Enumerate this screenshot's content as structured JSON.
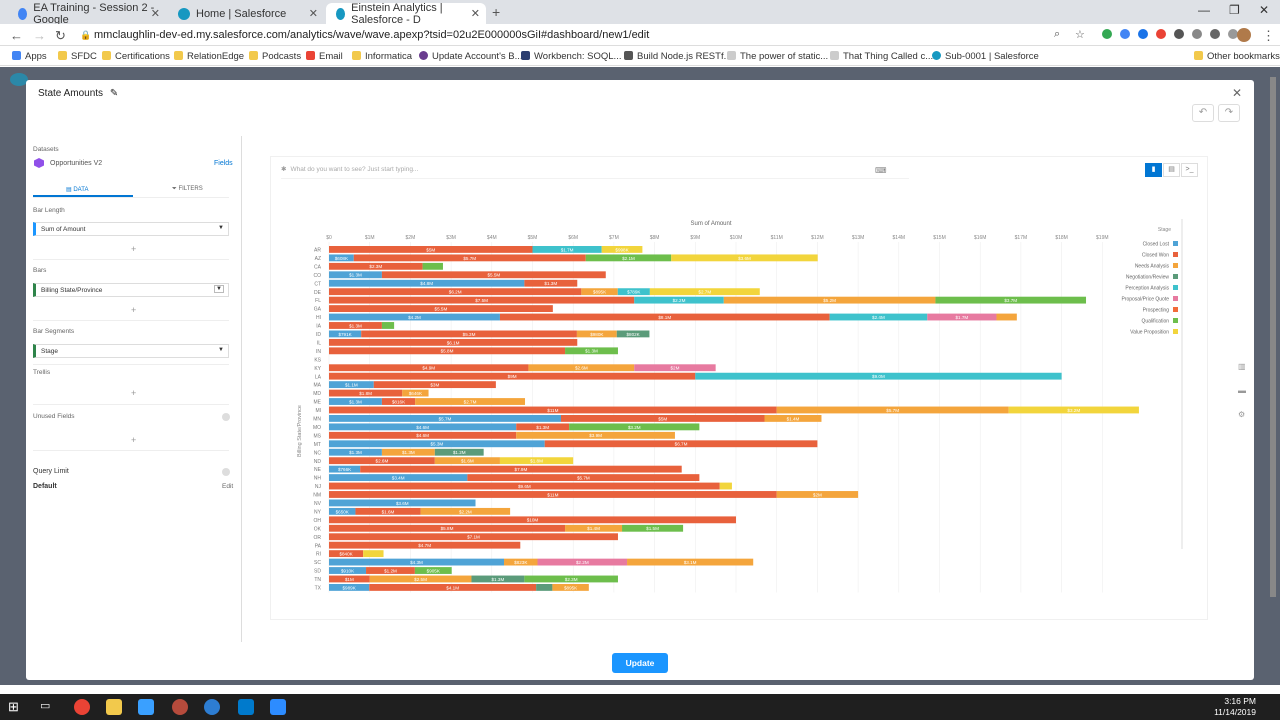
{
  "browser": {
    "tabs": [
      {
        "title": "EA Training - Session 2 - Google"
      },
      {
        "title": "Home | Salesforce"
      },
      {
        "title": "Einstein Analytics | Salesforce - D"
      }
    ],
    "url": "mmclaughlin-dev-ed.my.salesforce.com/analytics/wave/wave.apexp?tsid=02u2E000000sGiI#dashboard/new1/edit",
    "bookmarks": [
      "Apps",
      "SFDC",
      "Certifications",
      "RelationEdge",
      "Podcasts",
      "Email",
      "Informatica",
      "Update Account's B...",
      "Workbench: SOQL...",
      "Build Node.js RESTf...",
      "The power of static...",
      "That Thing Called c...",
      "Sub-0001 | Salesforce"
    ],
    "other_bookmarks": "Other bookmarks"
  },
  "modal": {
    "title": "State Amounts",
    "update_label": "Update"
  },
  "panel": {
    "datasets_label": "Datasets",
    "dataset_name": "Opportunities V2",
    "fields_link": "Fields",
    "tab_data": "DATA",
    "tab_filters": "FILTERS",
    "bar_length_label": "Bar Length",
    "bar_length_value": "Sum of Amount",
    "bars_label": "Bars",
    "bars_value": "Billing State/Province",
    "bar_segments_label": "Bar Segments",
    "bar_segments_value": "Stage",
    "trellis_label": "Trellis",
    "unused_fields_label": "Unused Fields",
    "query_limit_label": "Query Limit",
    "query_limit_value": "Default",
    "edit_link": "Edit"
  },
  "explorer": {
    "search_placeholder": "What do you want to see? Just start typing..."
  },
  "chart_data": {
    "type": "bar",
    "orientation": "horizontal",
    "stacked": true,
    "title": "Sum of Amount",
    "ylabel": "Billing State/Province",
    "xlim": [
      0,
      19000000
    ],
    "x_ticks": [
      "$0",
      "$1M",
      "$2M",
      "$3M",
      "$4M",
      "$5M",
      "$6M",
      "$7M",
      "$8M",
      "$9M",
      "$10M",
      "$11M",
      "$12M",
      "$13M",
      "$14M",
      "$15M",
      "$16M",
      "$17M",
      "$18M",
      "$19M"
    ],
    "legend_title": "Stage",
    "legend_position": "right",
    "series": [
      {
        "name": "Closed Lost",
        "color": "#4fa3d6"
      },
      {
        "name": "Closed Won",
        "color": "#e8613c"
      },
      {
        "name": "Needs Analysis",
        "color": "#f4a53c"
      },
      {
        "name": "Negotiation/Review",
        "color": "#5b9b7a"
      },
      {
        "name": "Perception Analysis",
        "color": "#3ec2cc"
      },
      {
        "name": "Proposal/Price Quote",
        "color": "#e77aa0"
      },
      {
        "name": "Prospecting",
        "color": "#f26b3a"
      },
      {
        "name": "Qualification",
        "color": "#6dbe4c"
      },
      {
        "name": "Value Proposition",
        "color": "#f2d53c"
      }
    ],
    "rows": [
      {
        "state": "AR",
        "segments": [
          [
            "Closed Won",
            5,
            "$5M"
          ],
          [
            "Perception Analysis",
            1.7,
            "$1.7M"
          ],
          [
            "Value Proposition",
            1,
            "$998K"
          ]
        ]
      },
      {
        "state": "AZ",
        "segments": [
          [
            "Closed Lost",
            0.608,
            "$608K"
          ],
          [
            "Closed Won",
            5.7,
            "$5.7M"
          ],
          [
            "Qualification",
            2.1,
            "$2.1M"
          ],
          [
            "Value Proposition",
            3.6,
            "$3.6M"
          ]
        ]
      },
      {
        "state": "CA",
        "segments": [
          [
            "Closed Won",
            2.3,
            "$2.3M"
          ],
          [
            "Qualification",
            0.5,
            ""
          ]
        ]
      },
      {
        "state": "CO",
        "segments": [
          [
            "Closed Lost",
            1.3,
            "$1.3M"
          ],
          [
            "Closed Won",
            5.5,
            "$5.5M"
          ]
        ]
      },
      {
        "state": "CT",
        "segments": [
          [
            "Closed Lost",
            4.8,
            "$4.8M"
          ],
          [
            "Closed Won",
            1.3,
            "$1.3M"
          ]
        ]
      },
      {
        "state": "DE",
        "segments": [
          [
            "Closed Won",
            6.2,
            "$6.2M"
          ],
          [
            "Needs Analysis",
            0.895,
            "$895K"
          ],
          [
            "Perception Analysis",
            0.789,
            "$789K"
          ],
          [
            "Value Proposition",
            2.7,
            "$2.7M"
          ]
        ]
      },
      {
        "state": "FL",
        "segments": [
          [
            "Closed Won",
            7.5,
            "$7.5M"
          ],
          [
            "Perception Analysis",
            2.2,
            "$2.2M"
          ],
          [
            "Needs Analysis",
            5.2,
            "$5.2M"
          ],
          [
            "Qualification",
            3.7,
            "$3.7M"
          ]
        ]
      },
      {
        "state": "GA",
        "segments": [
          [
            "Closed Won",
            5.5,
            "$5.5M"
          ]
        ]
      },
      {
        "state": "HI",
        "segments": [
          [
            "Closed Lost",
            4.2,
            "$4.2M"
          ],
          [
            "Closed Won",
            8.1,
            "$8.1M"
          ],
          [
            "Perception Analysis",
            2.4,
            "$2.4M"
          ],
          [
            "Proposal/Price Quote",
            1.7,
            "$1.7M"
          ],
          [
            "Needs Analysis",
            0.5,
            ""
          ]
        ]
      },
      {
        "state": "IA",
        "segments": [
          [
            "Closed Won",
            1.3,
            "$1.3M"
          ],
          [
            "Qualification",
            0.3,
            ""
          ]
        ]
      },
      {
        "state": "ID",
        "segments": [
          [
            "Closed Lost",
            0.791,
            "$791K"
          ],
          [
            "Closed Won",
            5.3,
            "$5.3M"
          ],
          [
            "Needs Analysis",
            0.98,
            "$980K"
          ],
          [
            "Negotiation/Review",
            0.802,
            "$802K"
          ]
        ]
      },
      {
        "state": "IL",
        "segments": [
          [
            "Closed Won",
            6.1,
            "$6.1M"
          ]
        ]
      },
      {
        "state": "IN",
        "segments": [
          [
            "Closed Won",
            5.8,
            "$5.8M"
          ],
          [
            "Qualification",
            1.3,
            "$1.3M"
          ]
        ]
      },
      {
        "state": "KS",
        "segments": []
      },
      {
        "state": "KY",
        "segments": [
          [
            "Closed Won",
            4.9,
            "$4.9M"
          ],
          [
            "Needs Analysis",
            2.6,
            "$2.6M"
          ],
          [
            "Proposal/Price Quote",
            2,
            "$2M"
          ]
        ]
      },
      {
        "state": "LA",
        "segments": [
          [
            "Closed Won",
            9,
            "$9M"
          ],
          [
            "Perception Analysis",
            9.0,
            "$9.0M"
          ]
        ]
      },
      {
        "state": "MA",
        "segments": [
          [
            "Closed Lost",
            1.1,
            "$1.1M"
          ],
          [
            "Closed Won",
            3,
            "$3M"
          ]
        ]
      },
      {
        "state": "MD",
        "segments": [
          [
            "Closed Won",
            1.8,
            "$1.8M"
          ],
          [
            "Needs Analysis",
            0.646,
            "$646K"
          ]
        ]
      },
      {
        "state": "ME",
        "segments": [
          [
            "Closed Lost",
            1.3,
            "$1.3M"
          ],
          [
            "Closed Won",
            0.816,
            "$816K"
          ],
          [
            "Needs Analysis",
            2.7,
            "$2.7M"
          ]
        ]
      },
      {
        "state": "MI",
        "segments": [
          [
            "Closed Won",
            11,
            "$11M"
          ],
          [
            "Needs Analysis",
            5.7,
            "$5.7M"
          ],
          [
            "Value Proposition",
            3.2,
            "$3.2M"
          ]
        ]
      },
      {
        "state": "MN",
        "segments": [
          [
            "Closed Lost",
            5.7,
            "$5.7M"
          ],
          [
            "Closed Won",
            5,
            "$5M"
          ],
          [
            "Needs Analysis",
            1.4,
            "$1.4M"
          ]
        ]
      },
      {
        "state": "MO",
        "segments": [
          [
            "Closed Lost",
            4.6,
            "$4.6M"
          ],
          [
            "Closed Won",
            1.3,
            "$1.3M"
          ],
          [
            "Qualification",
            3.2,
            "$3.2M"
          ]
        ]
      },
      {
        "state": "MS",
        "segments": [
          [
            "Closed Won",
            4.6,
            "$4.6M"
          ],
          [
            "Needs Analysis",
            3.9,
            "$3.9M"
          ]
        ]
      },
      {
        "state": "MT",
        "segments": [
          [
            "Closed Lost",
            5.3,
            "$5.3M"
          ],
          [
            "Closed Won",
            6.7,
            "$6.7M"
          ]
        ]
      },
      {
        "state": "NC",
        "segments": [
          [
            "Closed Lost",
            1.3,
            "$1.3M"
          ],
          [
            "Needs Analysis",
            1.3,
            "$1.3M"
          ],
          [
            "Negotiation/Review",
            1.2,
            "$1.2M"
          ]
        ]
      },
      {
        "state": "ND",
        "segments": [
          [
            "Closed Won",
            2.6,
            "$2.6M"
          ],
          [
            "Needs Analysis",
            1.6,
            "$1.6M"
          ],
          [
            "Value Proposition",
            1.8,
            "$1.8M"
          ]
        ]
      },
      {
        "state": "NE",
        "segments": [
          [
            "Closed Lost",
            0.766,
            "$766K"
          ],
          [
            "Closed Won",
            7.9,
            "$7.9M"
          ]
        ]
      },
      {
        "state": "NH",
        "segments": [
          [
            "Closed Lost",
            3.4,
            "$3.4M"
          ],
          [
            "Closed Won",
            5.7,
            "$5.7M"
          ]
        ]
      },
      {
        "state": "NJ",
        "segments": [
          [
            "Closed Won",
            9.6,
            "$9.6M"
          ],
          [
            "Value Proposition",
            0.3,
            ""
          ]
        ]
      },
      {
        "state": "NM",
        "segments": [
          [
            "Closed Won",
            11,
            "$11M"
          ],
          [
            "Needs Analysis",
            2,
            "$2M"
          ]
        ]
      },
      {
        "state": "NV",
        "segments": [
          [
            "Closed Lost",
            3.6,
            "$3.6M"
          ]
        ]
      },
      {
        "state": "NY",
        "segments": [
          [
            "Closed Lost",
            0.65,
            "$650K"
          ],
          [
            "Closed Won",
            1.6,
            "$1.6M"
          ],
          [
            "Needs Analysis",
            2.2,
            "$2.2M"
          ]
        ]
      },
      {
        "state": "OH",
        "segments": [
          [
            "Closed Won",
            10,
            "$10M"
          ]
        ]
      },
      {
        "state": "OK",
        "segments": [
          [
            "Closed Won",
            5.8,
            "$5.8M"
          ],
          [
            "Needs Analysis",
            1.4,
            "$1.4M"
          ],
          [
            "Qualification",
            1.5,
            "$1.5M"
          ]
        ]
      },
      {
        "state": "OR",
        "segments": [
          [
            "Closed Won",
            7.1,
            "$7.1M"
          ]
        ]
      },
      {
        "state": "PA",
        "segments": [
          [
            "Closed Won",
            4.7,
            "$4.7M"
          ]
        ]
      },
      {
        "state": "RI",
        "segments": [
          [
            "Closed Won",
            0.84,
            "$840K"
          ],
          [
            "Value Proposition",
            0.5,
            ""
          ]
        ]
      },
      {
        "state": "SC",
        "segments": [
          [
            "Closed Lost",
            4.3,
            "$4.3M"
          ],
          [
            "Needs Analysis",
            0.823,
            "$823K"
          ],
          [
            "Proposal/Price Quote",
            2.2,
            "$2.2M"
          ],
          [
            "Needs Analysis",
            3.1,
            "$3.1M"
          ]
        ]
      },
      {
        "state": "SD",
        "segments": [
          [
            "Closed Lost",
            0.91,
            "$910K"
          ],
          [
            "Closed Won",
            1.2,
            "$1.2M"
          ],
          [
            "Qualification",
            0.905,
            "$905K"
          ]
        ]
      },
      {
        "state": "TN",
        "segments": [
          [
            "Closed Won",
            1,
            "$1M"
          ],
          [
            "Needs Analysis",
            2.5,
            "$2.5M"
          ],
          [
            "Negotiation/Review",
            1.3,
            "$1.3M"
          ],
          [
            "Qualification",
            2.3,
            "$2.3M"
          ]
        ]
      },
      {
        "state": "TX",
        "segments": [
          [
            "Closed Lost",
            0.989,
            "$989K"
          ],
          [
            "Closed Won",
            4.1,
            "$4.1M"
          ],
          [
            "Negotiation/Review",
            0.4,
            ""
          ],
          [
            "Needs Analysis",
            0.895,
            "$895K"
          ]
        ]
      }
    ]
  },
  "taskbar": {
    "time": "3:16 PM",
    "date": "11/14/2019"
  }
}
